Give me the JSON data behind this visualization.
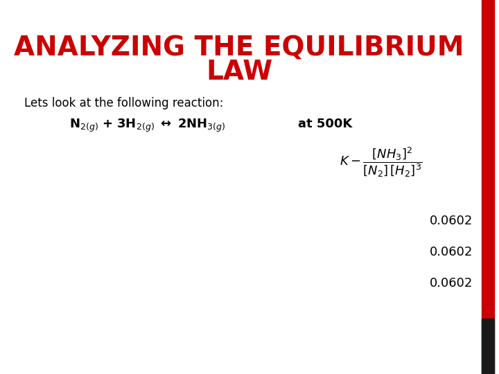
{
  "title_line1": "ANALYZING THE EQUILIBRIUM",
  "title_line2": "LAW",
  "title_color": "#cc0000",
  "title_fontsize": 28,
  "title_fontweight": "bold",
  "subtitle": "Lets look at the following reaction:",
  "subtitle_fontsize": 12,
  "bg_color": "#ffffff",
  "right_bar_color": "#cc0000",
  "right_bar_color2": "#1a1a1a",
  "value1": "0.0602",
  "value2": "0.0602",
  "value3": "0.0602",
  "at_500K": "at 500K",
  "values_fontsize": 13,
  "reaction_fontsize": 13
}
